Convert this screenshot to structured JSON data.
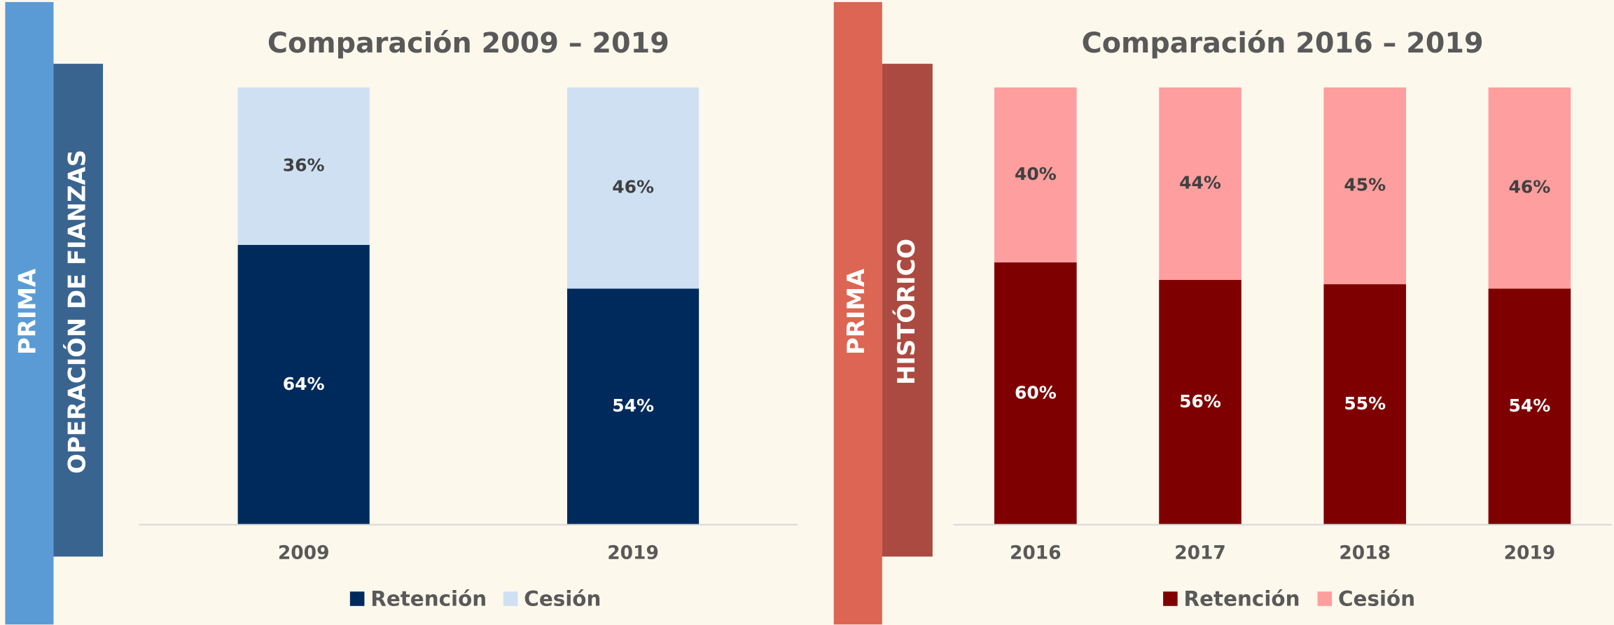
{
  "chart_data": [
    {
      "type": "bar",
      "stacked": true,
      "title": "Comparación 2009 – 2019",
      "side_labels": [
        "PRIMA",
        "OPERACIÓN DE FIANZAS"
      ],
      "categories": [
        "2009",
        "2019"
      ],
      "ylim": [
        0,
        100
      ],
      "series": [
        {
          "name": "Retención",
          "color": "#002a5c",
          "label_color": "#ffffff",
          "values": [
            64,
            54
          ],
          "value_labels": [
            "64%",
            "54%"
          ]
        },
        {
          "name": "Cesión",
          "color": "#cfe0f3",
          "label_color": "#404040",
          "values": [
            36,
            46
          ],
          "value_labels": [
            "36%",
            "46%"
          ]
        }
      ]
    },
    {
      "type": "bar",
      "stacked": true,
      "title": "Comparación 2016 – 2019",
      "side_labels": [
        "PRIMA",
        "HISTÓRICO"
      ],
      "categories": [
        "2016",
        "2017",
        "2018",
        "2019"
      ],
      "ylim": [
        0,
        100
      ],
      "series": [
        {
          "name": "Retención",
          "color": "#7f0000",
          "label_color": "#ffffff",
          "values": [
            60,
            56,
            55,
            54
          ],
          "value_labels": [
            "60%",
            "56%",
            "55%",
            "54%"
          ]
        },
        {
          "name": "Cesión",
          "color": "#ff9e9e",
          "label_color": "#404040",
          "values": [
            40,
            44,
            45,
            46
          ],
          "value_labels": [
            "40%",
            "44%",
            "45%",
            "46%"
          ]
        }
      ]
    }
  ]
}
